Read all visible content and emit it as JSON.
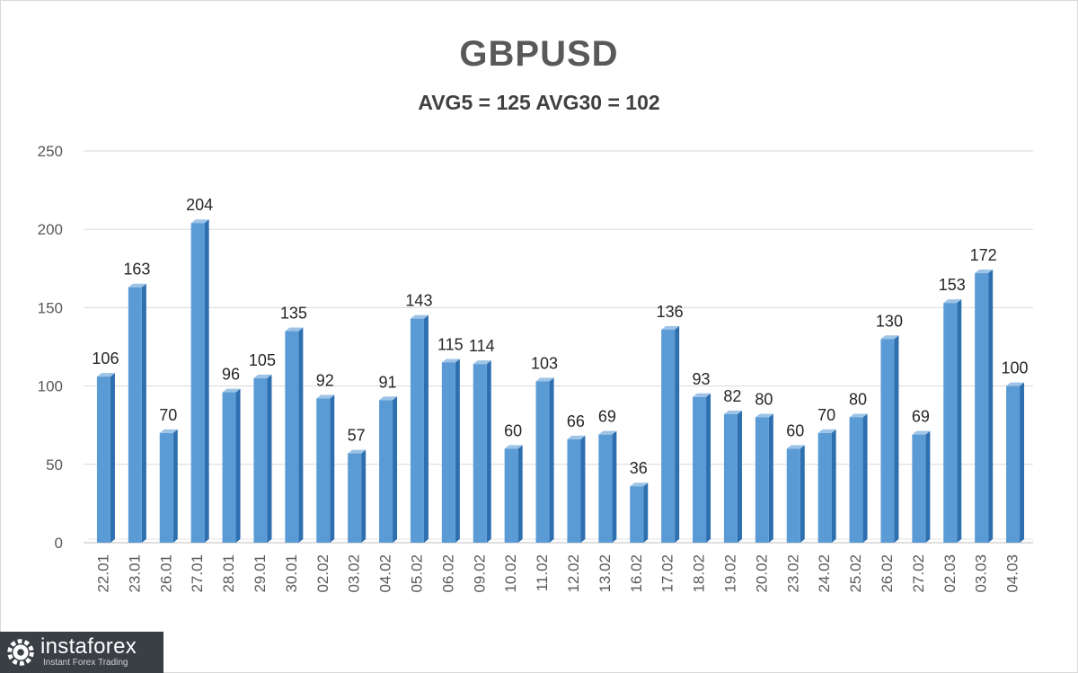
{
  "chart_data": {
    "type": "bar",
    "title": "GBPUSD",
    "subtitle": "AVG5 = 125 AVG30 = 102",
    "categories": [
      "22.01",
      "23.01",
      "26.01",
      "27.01",
      "28.01",
      "29.01",
      "30.01",
      "02.02",
      "03.02",
      "04.02",
      "05.02",
      "06.02",
      "09.02",
      "10.02",
      "11.02",
      "12.02",
      "13.02",
      "16.02",
      "17.02",
      "18.02",
      "19.02",
      "20.02",
      "23.02",
      "24.02",
      "25.02",
      "26.02",
      "27.02",
      "02.03",
      "03.03",
      "04.03"
    ],
    "values": [
      106,
      163,
      70,
      204,
      96,
      105,
      135,
      92,
      57,
      91,
      143,
      115,
      114,
      60,
      103,
      66,
      69,
      36,
      136,
      93,
      82,
      80,
      60,
      70,
      80,
      130,
      69,
      153,
      172,
      100
    ],
    "ylim": [
      0,
      250
    ],
    "yticks": [
      0,
      50,
      100,
      150,
      200,
      250
    ],
    "grid": true,
    "legend": "none",
    "bar_color": "#5b9bd5",
    "bar_side_color": "#2e6fb0",
    "bar_top_color": "#9dc3e6"
  },
  "watermark": {
    "brand": "instaforex",
    "tagline": "Instant Forex Trading",
    "icon": "gear-logo-icon"
  }
}
